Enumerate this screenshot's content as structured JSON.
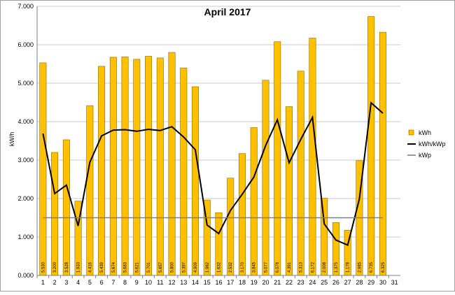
{
  "chart_data": {
    "type": "bar",
    "title": "April 2017",
    "ylabel": "kW/h",
    "xlabel": "",
    "ylim": [
      0,
      7
    ],
    "yticks": [
      "0.000",
      "1.000",
      "2.000",
      "3.000",
      "4.000",
      "5.000",
      "6.000",
      "7.000"
    ],
    "ytick_values": [
      0,
      1,
      2,
      3,
      4,
      5,
      6,
      7
    ],
    "categories": [
      "1",
      "2",
      "3",
      "4",
      "5",
      "6",
      "7",
      "8",
      "9",
      "10",
      "11",
      "12",
      "13",
      "14",
      "15",
      "16",
      "17",
      "18",
      "19",
      "20",
      "21",
      "22",
      "23",
      "24",
      "25",
      "26",
      "27",
      "28",
      "29",
      "30",
      "31"
    ],
    "grid": "horizontal",
    "legend_position": "right",
    "series": [
      {
        "name": "kWh",
        "type": "bar",
        "values": [
          5.53,
          3.2,
          3.528,
          1.933,
          4.416,
          5.439,
          5.674,
          5.683,
          5.621,
          5.701,
          5.657,
          5.8,
          5.397,
          4.909,
          1.962,
          1.632,
          2.532,
          3.17,
          3.845,
          5.077,
          6.078,
          4.391,
          5.313,
          6.172,
          2.008,
          1.375,
          1.178,
          2.985,
          6.735,
          6.325,
          null
        ],
        "data_labels": [
          "5.530",
          "3.200",
          "3.528",
          "1.933",
          "4.416",
          "5.439",
          "5.674",
          "5.683",
          "5.621",
          "5.701",
          "5.657",
          "5.800",
          "5.397",
          "4.909",
          "1.962",
          "1.632",
          "2.532",
          "3.170",
          "3.845",
          "5.077",
          "6.078",
          "4.391",
          "5.313",
          "6.172",
          "2.008",
          "1.375",
          "1.178",
          "2.985",
          "6.735",
          "6.325",
          ""
        ],
        "color": "#FFC000"
      },
      {
        "name": "kWh/kWp",
        "type": "line",
        "values": [
          3.69,
          2.13,
          2.35,
          1.29,
          2.94,
          3.63,
          3.78,
          3.79,
          3.75,
          3.8,
          3.77,
          3.87,
          3.6,
          3.27,
          1.31,
          1.09,
          1.69,
          2.11,
          2.56,
          3.38,
          4.05,
          2.93,
          3.54,
          4.11,
          1.34,
          0.92,
          0.79,
          1.99,
          4.49,
          4.22,
          null
        ],
        "color": "#000000"
      },
      {
        "name": "kWp",
        "type": "line",
        "values": [
          1.5,
          1.5,
          1.5,
          1.5,
          1.5,
          1.5,
          1.5,
          1.5,
          1.5,
          1.5,
          1.5,
          1.5,
          1.5,
          1.5,
          1.5,
          1.5,
          1.5,
          1.5,
          1.5,
          1.5,
          1.5,
          1.5,
          1.5,
          1.5,
          1.5,
          1.5,
          1.5,
          1.5,
          1.5,
          1.5,
          null
        ],
        "color": "#808080"
      }
    ]
  }
}
